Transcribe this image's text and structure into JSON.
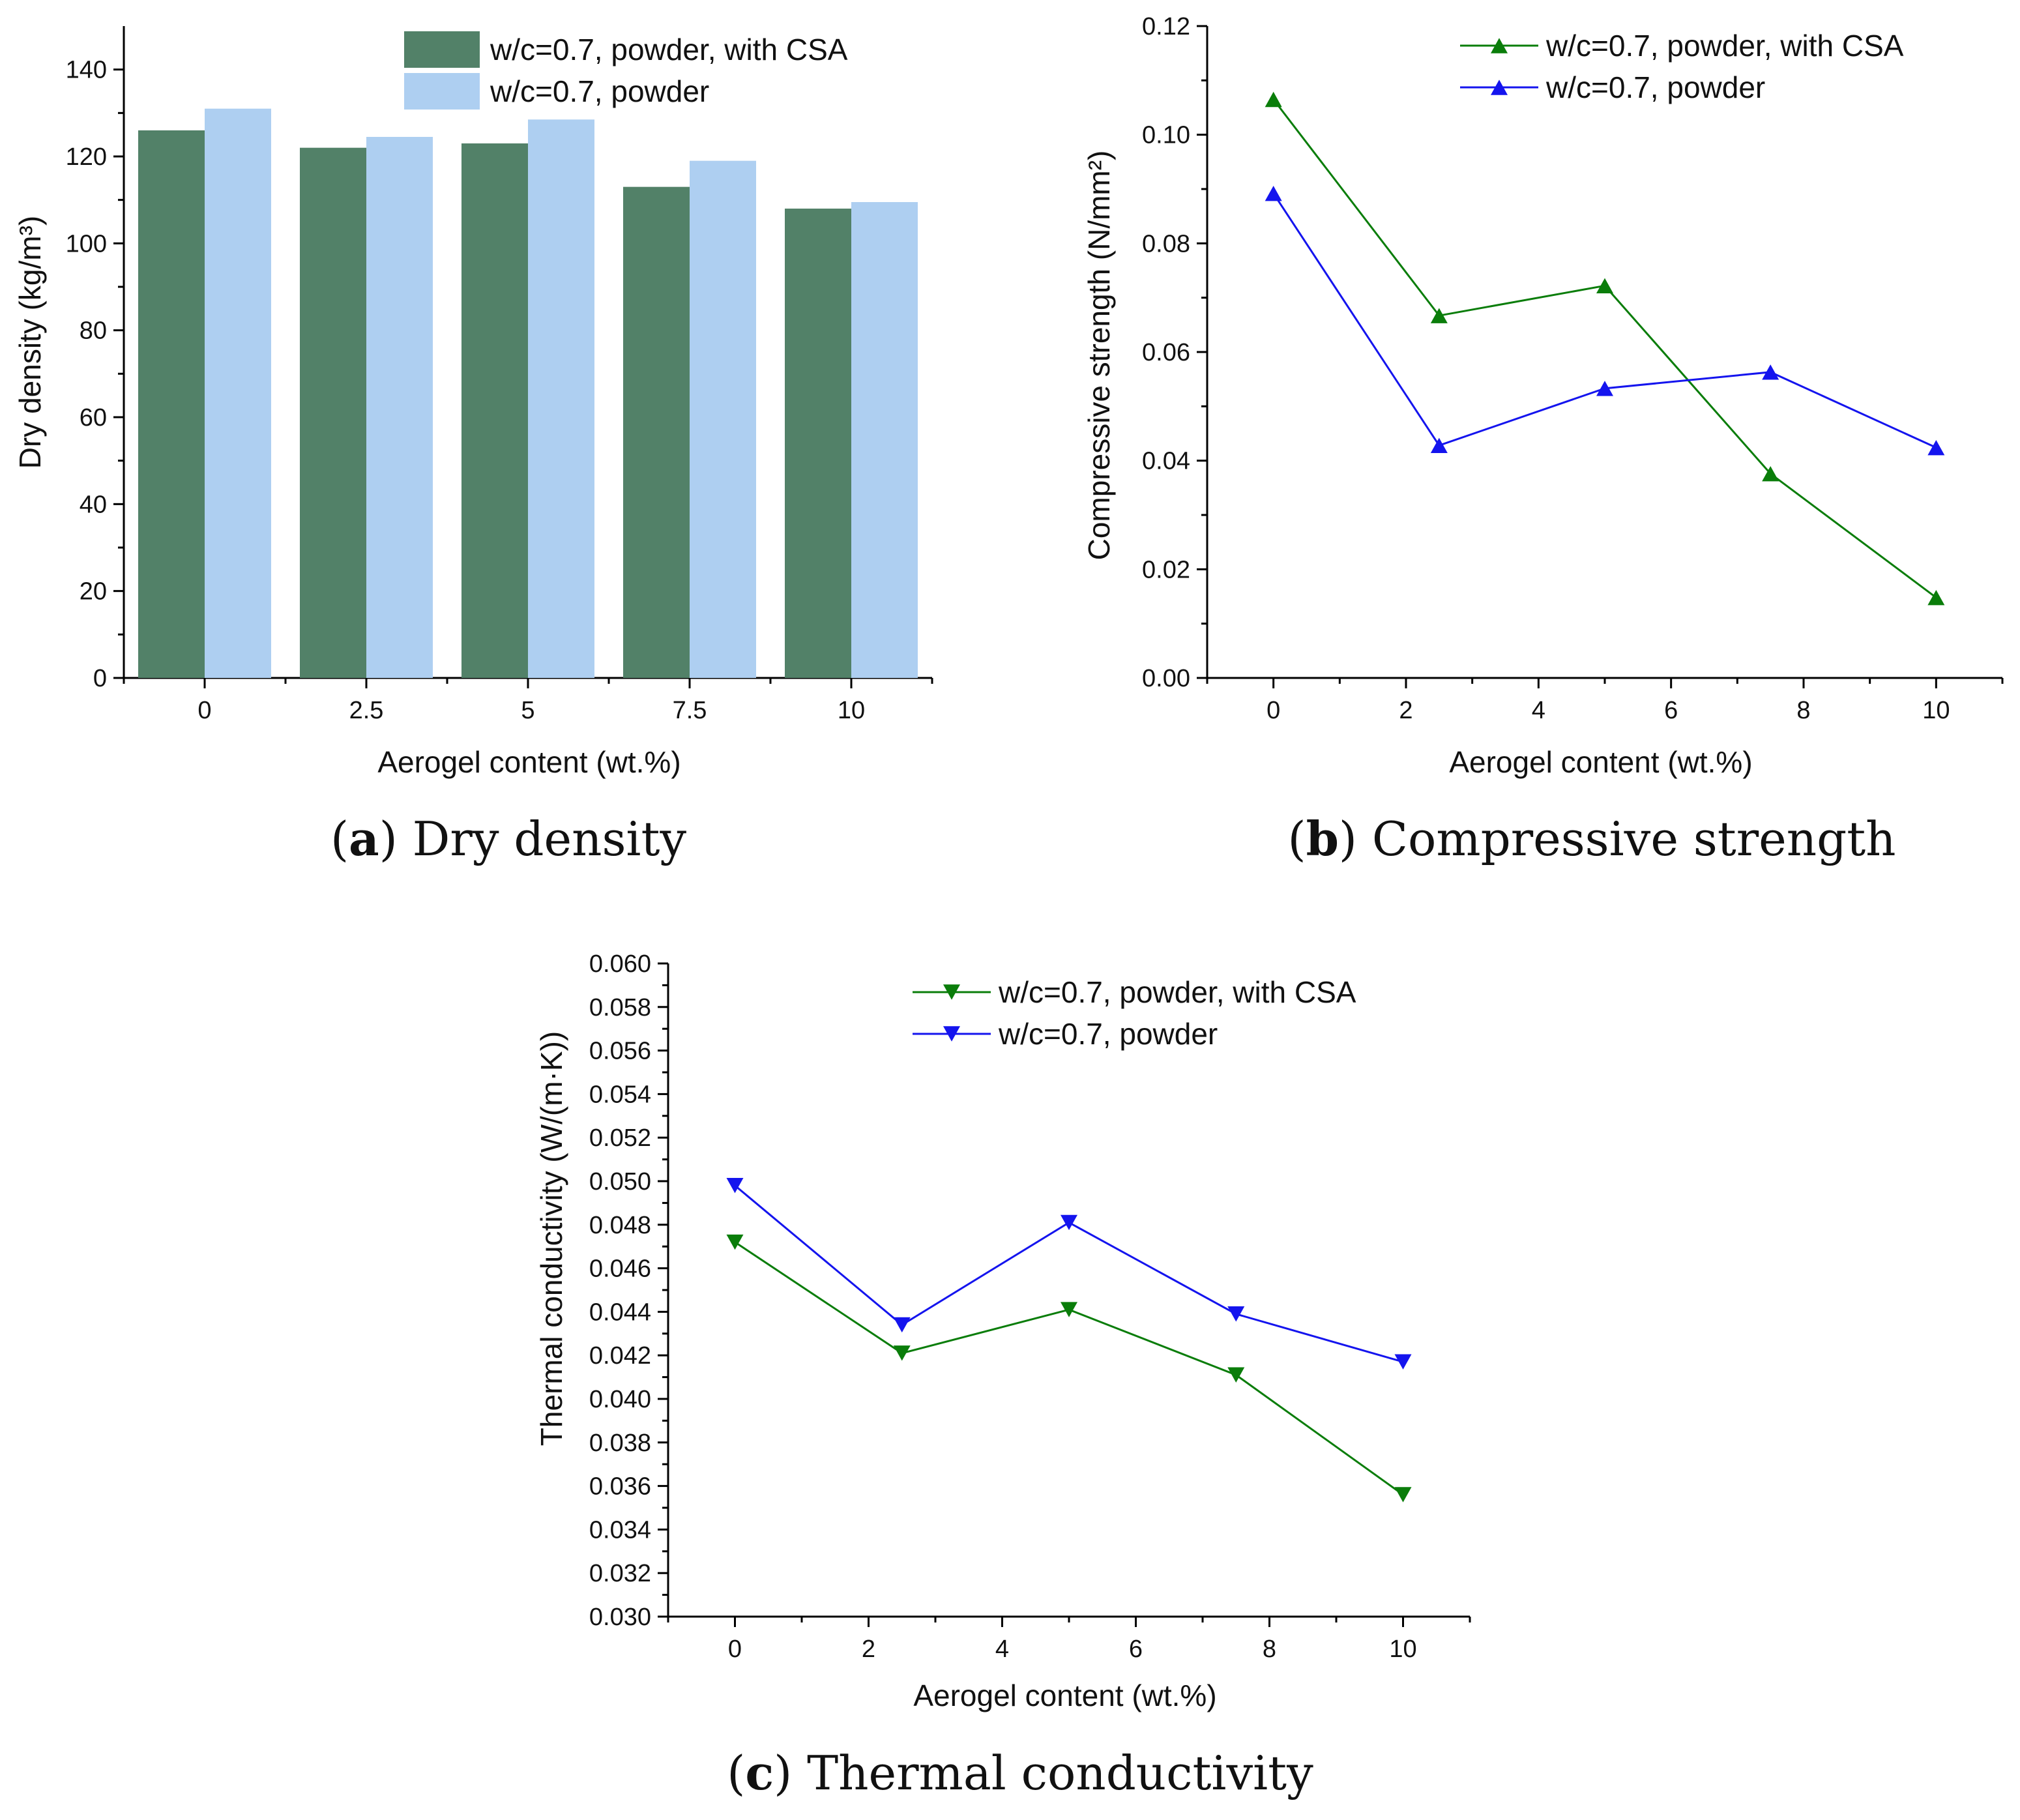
{
  "chart_data": [
    {
      "id": "a",
      "type": "bar",
      "caption_letter": "a",
      "caption_text": " Dry density",
      "categories": [
        "0",
        "2.5",
        "5",
        "7.5",
        "10"
      ],
      "series": [
        {
          "name": "w/c=0.7, powder, with CSA",
          "color": "#528168",
          "values": [
            126,
            122,
            123,
            113,
            108
          ]
        },
        {
          "name": "w/c=0.7, powder",
          "color": "#aecff1",
          "values": [
            131,
            124.5,
            128.5,
            119,
            109.5
          ]
        }
      ],
      "xlabel": "Aerogel content (wt.%)",
      "ylabel": "Dry density (kg/m³)",
      "ylim": [
        0,
        150
      ],
      "yticks": [
        0,
        20,
        40,
        60,
        80,
        100,
        120,
        140
      ],
      "ytick_labels": [
        "0",
        "20",
        "40",
        "60",
        "80",
        "100",
        "120",
        "140"
      ],
      "legend_position": "top-right"
    },
    {
      "id": "b",
      "type": "line",
      "caption_letter": "b",
      "caption_text": " Compressive strength",
      "x": [
        0,
        2.5,
        5,
        7.5,
        10
      ],
      "series": [
        {
          "name": "w/c=0.7, powder, with CSA",
          "color": "#0a7d0a",
          "marker": "triangle-up",
          "values": [
            0.1065,
            0.0667,
            0.0722,
            0.0376,
            0.0148
          ]
        },
        {
          "name": "w/c=0.7, powder",
          "color": "#1414ee",
          "marker": "triangle-up",
          "values": [
            0.0892,
            0.0428,
            0.0533,
            0.0563,
            0.0424
          ]
        }
      ],
      "xlabel": "Aerogel content (wt.%)",
      "ylabel": "Compressive strength (N/mm²)",
      "xlim": [
        -1,
        11
      ],
      "ylim": [
        0,
        0.12
      ],
      "xticks": [
        0,
        2,
        4,
        6,
        8,
        10
      ],
      "xtick_labels": [
        "0",
        "2",
        "4",
        "6",
        "8",
        "10"
      ],
      "yticks": [
        0,
        0.02,
        0.04,
        0.06,
        0.08,
        0.1,
        0.12
      ],
      "ytick_labels": [
        "0.00",
        "0.02",
        "0.04",
        "0.06",
        "0.08",
        "0.10",
        "0.12"
      ],
      "legend_position": "top-right"
    },
    {
      "id": "c",
      "type": "line",
      "caption_letter": "c",
      "caption_text": " Thermal conductivity",
      "x": [
        0,
        2.5,
        5,
        7.5,
        10
      ],
      "series": [
        {
          "name": "w/c=0.7, powder, with CSA",
          "color": "#0a7d0a",
          "marker": "triangle-down",
          "values": [
            0.0472,
            0.0421,
            0.0441,
            0.0411,
            0.0356
          ]
        },
        {
          "name": "w/c=0.7, powder",
          "color": "#1414ee",
          "marker": "triangle-down",
          "values": [
            0.0498,
            0.0434,
            0.0481,
            0.0439,
            0.0417
          ]
        }
      ],
      "xlabel": "Aerogel content (wt.%)",
      "ylabel": "Thermal conductivity (W/(m·K))",
      "xlim": [
        -1,
        11
      ],
      "ylim": [
        0.03,
        0.06
      ],
      "xticks": [
        0,
        2,
        4,
        6,
        8,
        10
      ],
      "xtick_labels": [
        "0",
        "2",
        "4",
        "6",
        "8",
        "10"
      ],
      "yticks": [
        0.03,
        0.032,
        0.034,
        0.036,
        0.038,
        0.04,
        0.042,
        0.044,
        0.046,
        0.048,
        0.05,
        0.052,
        0.054,
        0.056,
        0.058,
        0.06
      ],
      "ytick_labels": [
        "0.030",
        "0.032",
        "0.034",
        "0.036",
        "0.038",
        "0.040",
        "0.042",
        "0.044",
        "0.046",
        "0.048",
        "0.050",
        "0.052",
        "0.054",
        "0.056",
        "0.058",
        "0.060"
      ],
      "legend_position": "top-right"
    }
  ]
}
